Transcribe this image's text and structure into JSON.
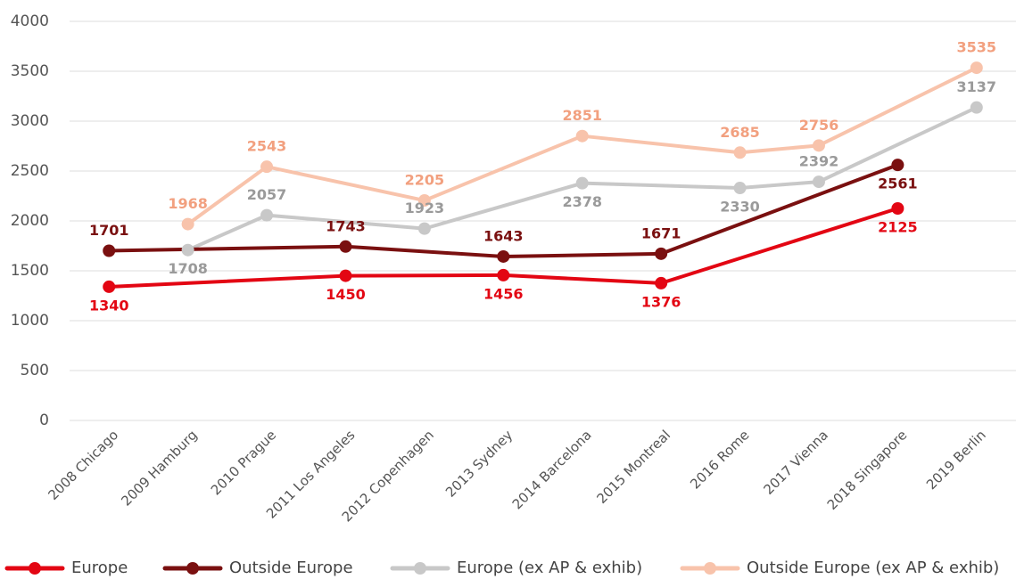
{
  "chart_data": {
    "type": "line",
    "categories": [
      "2008 Chicago",
      "2009 Hamburg",
      "2010 Prague",
      "2011 Los Angeles",
      "2012 Copenhagen",
      "2013 Sydney",
      "2014 Barcelona",
      "2015 Montreal",
      "2016 Rome",
      "2017 Vienna",
      "2018 Singapore",
      "2019 Berlin"
    ],
    "series": [
      {
        "name": "Europe",
        "color": "#e30613",
        "values": [
          1340,
          null,
          null,
          1450,
          null,
          1456,
          null,
          1376,
          null,
          null,
          2125,
          null
        ]
      },
      {
        "name": "Outside Europe",
        "color": "#7a1010",
        "values": [
          1701,
          null,
          null,
          1743,
          null,
          1643,
          null,
          1671,
          null,
          null,
          2561,
          null
        ]
      },
      {
        "name": "Europe (ex AP & exhib)",
        "color": "#c8c8c8",
        "values": [
          null,
          1708,
          2057,
          null,
          1923,
          null,
          2378,
          null,
          2330,
          2392,
          null,
          3137
        ]
      },
      {
        "name": "Outside Europe (ex AP & exhib)",
        "color": "#f8c3ab",
        "values": [
          null,
          1968,
          2543,
          null,
          2205,
          null,
          2851,
          null,
          2685,
          2756,
          null,
          3535
        ]
      }
    ],
    "ylim": [
      0,
      4000
    ],
    "yticks": [
      0,
      500,
      1000,
      1500,
      2000,
      2500,
      3000,
      3500,
      4000
    ],
    "grid": true,
    "legend": "bottom"
  }
}
